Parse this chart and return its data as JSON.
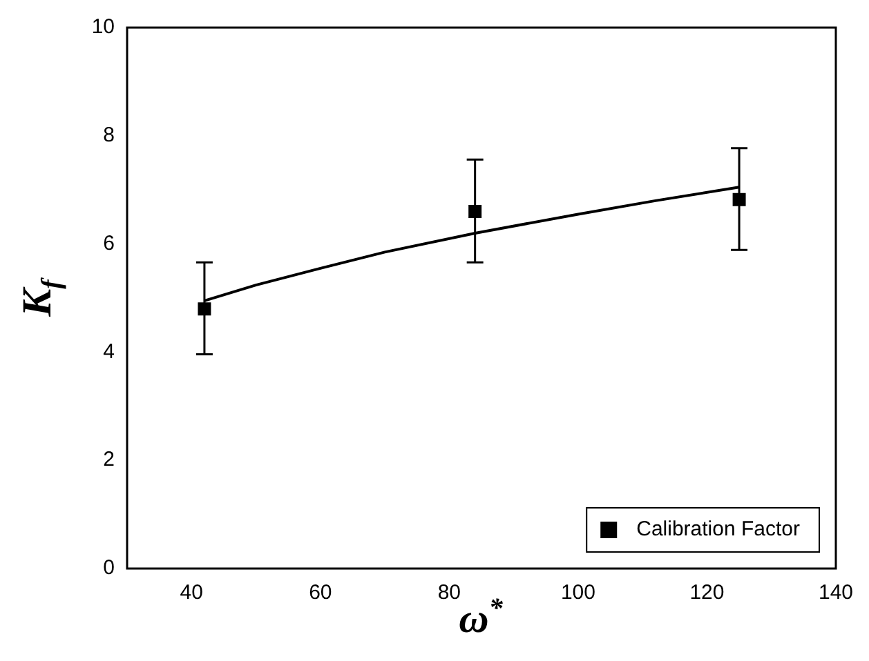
{
  "chart_data": {
    "type": "scatter",
    "xlabel": "ω$^{*}$",
    "ylabel": "K$_{f}$",
    "xlim": [
      30,
      140
    ],
    "xticks": [
      40,
      60,
      80,
      100,
      120,
      140
    ],
    "ylim": [
      0,
      10
    ],
    "yticks": [
      0,
      2,
      4,
      6,
      8,
      10
    ],
    "grid": false,
    "legend": "bottom right",
    "marker": "square",
    "series": [
      {
        "name": "Calibration Factor",
        "color": "#000000",
        "x": [
          42,
          84,
          125
        ],
        "values": [
          4.8,
          6.6,
          6.82
        ],
        "errors": [
          [
            3.96,
            5.66
          ],
          [
            5.66,
            7.56
          ],
          [
            5.89,
            7.77
          ]
        ]
      },
      {
        "type": "line",
        "color": "#000000",
        "marker": "none",
        "line_style": "solid",
        "x": [
          42,
          50,
          60,
          70,
          84,
          100,
          112,
          125
        ],
        "values": [
          4.95,
          5.24,
          5.55,
          5.85,
          6.2,
          6.55,
          6.8,
          7.05
        ]
      }
    ]
  }
}
